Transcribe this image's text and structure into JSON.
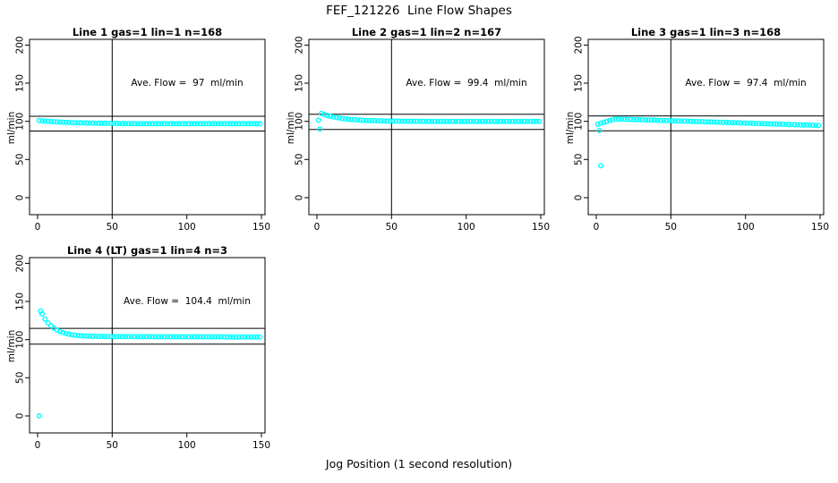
{
  "page": {
    "main_title": "FEF_121226  Line Flow Shapes",
    "x_axis_label": "Jog Position (1 second resolution)"
  },
  "colors": {
    "marker": "#00FFFF",
    "axis": "#000000",
    "background": "#FFFFFF"
  },
  "chart_data": [
    {
      "type": "scatter",
      "title": "Line 1 gas=1 lin=1 n=168",
      "annotation": "Ave. Flow =  97  ml/min",
      "ave_flow_ml_min": 97,
      "ylabel": "ml/min",
      "x_ticks": [
        0,
        50,
        100,
        150
      ],
      "y_ticks": [
        0,
        50,
        100,
        150,
        200
      ],
      "xlim": [
        -5,
        152
      ],
      "ylim": [
        -21,
        207
      ],
      "ref_hlines": [
        106.7,
        87.3
      ],
      "ref_vline": 50,
      "series": {
        "x_start": 1,
        "x_step": 2,
        "y": [
          101.1,
          100.7,
          100.4,
          100.1,
          99.8,
          99.6,
          99.3,
          99.1,
          98.9,
          98.8,
          98.6,
          98.4,
          98.3,
          98.2,
          98.1,
          98.0,
          97.9,
          97.8,
          97.7,
          97.6,
          97.6,
          97.5,
          97.5,
          97.4,
          97.4,
          97.3,
          97.3,
          97.3,
          97.2,
          97.2,
          97.2,
          97.1,
          97.1,
          97.1,
          97.1,
          97.1,
          97.1,
          97.0,
          97.0,
          97.0,
          97.0,
          97.0,
          97.0,
          97.0,
          97.0,
          96.9,
          96.9,
          96.9,
          96.9,
          96.9,
          96.9,
          96.9,
          96.9,
          96.9,
          96.9,
          96.9,
          96.9,
          96.9,
          96.9,
          96.9,
          96.9,
          96.9,
          96.9,
          96.9,
          96.9,
          96.9,
          96.9,
          96.9,
          96.9,
          96.9,
          96.9,
          96.9,
          96.9,
          96.9,
          96.9
        ]
      },
      "outliers": []
    },
    {
      "type": "scatter",
      "title": "Line 2 gas=1 lin=2 n=167",
      "annotation": "Ave. Flow =  99.4  ml/min",
      "ave_flow_ml_min": 99.4,
      "ylabel": "ml/min",
      "x_ticks": [
        0,
        50,
        100,
        150
      ],
      "y_ticks": [
        0,
        50,
        100,
        150,
        200
      ],
      "xlim": [
        -5,
        152
      ],
      "ylim": [
        -21,
        207
      ],
      "ref_hlines": [
        109.3,
        89.5
      ],
      "ref_vline": 50,
      "series": {
        "x_start": 1,
        "x_step": 2,
        "y": [
          101.5,
          110.3,
          108.9,
          107.7,
          106.7,
          105.8,
          105.0,
          104.4,
          103.8,
          103.3,
          102.8,
          102.5,
          102.1,
          101.9,
          101.6,
          101.4,
          101.2,
          101.0,
          100.9,
          100.8,
          100.7,
          100.6,
          100.5,
          100.4,
          100.4,
          100.3,
          100.3,
          100.3,
          100.2,
          100.2,
          100.2,
          100.1,
          100.1,
          100.1,
          100.1,
          100.1,
          100.0,
          100.0,
          100.0,
          100.0,
          100.0,
          100.0,
          100.0,
          100.0,
          100.0,
          100.0,
          100.0,
          100.0,
          100.0,
          100.0,
          100.0,
          100.0,
          100.0,
          100.0,
          100.0,
          100.0,
          100.0,
          100.0,
          100.0,
          100.0,
          100.0,
          100.0,
          100.0,
          100.0,
          100.0,
          100.0,
          100.0,
          100.0,
          100.0,
          100.0,
          100.0,
          100.0,
          100.0,
          100.0,
          100.0
        ]
      },
      "outliers": [
        [
          2,
          90
        ]
      ]
    },
    {
      "type": "scatter",
      "title": "Line 3 gas=1 lin=3 n=168",
      "annotation": "Ave. Flow =  97.4  ml/min",
      "ave_flow_ml_min": 97.4,
      "ylabel": "ml/min",
      "x_ticks": [
        0,
        50,
        100,
        150
      ],
      "y_ticks": [
        0,
        50,
        100,
        150,
        200
      ],
      "xlim": [
        -5,
        152
      ],
      "ylim": [
        -21,
        207
      ],
      "ref_hlines": [
        107.1,
        87.7
      ],
      "ref_vline": 50,
      "series": {
        "x_start": 1,
        "x_step": 2,
        "y": [
          96.5,
          97.6,
          98.7,
          99.9,
          101.0,
          102.1,
          103.2,
          103.1,
          102.9,
          102.8,
          102.7,
          102.6,
          102.4,
          102.3,
          102.2,
          102.1,
          101.9,
          101.8,
          101.7,
          101.6,
          101.4,
          101.3,
          101.2,
          101.1,
          100.9,
          100.8,
          100.7,
          100.6,
          100.4,
          100.3,
          100.2,
          100.1,
          99.9,
          99.8,
          99.7,
          99.6,
          99.4,
          99.3,
          99.2,
          99.1,
          98.9,
          98.8,
          98.7,
          98.6,
          98.4,
          98.3,
          98.2,
          98.1,
          97.9,
          97.8,
          97.7,
          97.6,
          97.4,
          97.3,
          97.2,
          97.1,
          96.9,
          96.8,
          96.7,
          96.6,
          96.4,
          96.3,
          96.2,
          96.1,
          95.9,
          95.8,
          95.7,
          95.6,
          95.4,
          95.3,
          95.2,
          95.1,
          94.9,
          94.8,
          94.7
        ]
      },
      "outliers": [
        [
          2,
          88
        ],
        [
          3,
          42
        ]
      ]
    },
    {
      "type": "scatter",
      "title": "Line 4 (LT) gas=1 lin=4 n=3",
      "annotation": "Ave. Flow =  104.4  ml/min",
      "ave_flow_ml_min": 104.4,
      "ylabel": "ml/min",
      "x_ticks": [
        0,
        50,
        100,
        150
      ],
      "y_ticks": [
        0,
        50,
        100,
        150,
        200
      ],
      "xlim": [
        -5,
        152
      ],
      "ylim": [
        -21,
        207
      ],
      "ref_hlines": [
        114.8,
        94.0
      ],
      "ref_vline": 50,
      "series": {
        "x_start": 3,
        "x_step": 2,
        "y": [
          133.6,
          127.0,
          121.9,
          118.0,
          114.9,
          112.5,
          110.6,
          109.1,
          108.0,
          107.1,
          106.4,
          105.9,
          105.5,
          105.1,
          104.9,
          104.7,
          104.5,
          104.4,
          104.3,
          104.3,
          104.2,
          104.2,
          104.1,
          104.1,
          104.1,
          104.0,
          104.0,
          104.0,
          104.0,
          104.0,
          104.0,
          103.9,
          103.9,
          103.9,
          103.9,
          103.9,
          103.9,
          103.9,
          103.8,
          103.8,
          103.8,
          103.8,
          103.8,
          103.8,
          103.8,
          103.8,
          103.7,
          103.7,
          103.7,
          103.7,
          103.7,
          103.7,
          103.7,
          103.7,
          103.6,
          103.6,
          103.6,
          103.6,
          103.6,
          103.6,
          103.6,
          103.6,
          103.5,
          103.5,
          103.5,
          103.5,
          103.5,
          103.5,
          103.5,
          103.5,
          103.5,
          103.5,
          103.5,
          103.5
        ]
      },
      "outliers": [
        [
          1,
          0
        ],
        [
          2,
          137.5
        ]
      ]
    }
  ]
}
